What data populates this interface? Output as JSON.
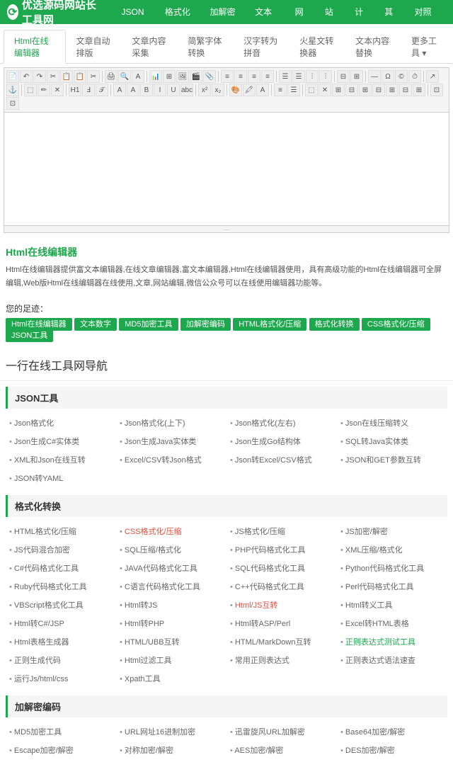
{
  "site_name": "优选源码网站长工具网",
  "topnav": [
    "JSON工具",
    "格式化转换",
    "加解密编码",
    "文本数字",
    "网络",
    "站长",
    "计算",
    "其他",
    "对照列表"
  ],
  "tabs": [
    "Html在线编辑器",
    "文章自动排版",
    "文章内容采集",
    "简繁字体转换",
    "汉字转为拼音",
    "火星文转换器",
    "文本内容替换",
    "更多工具"
  ],
  "section_title": "Html在线编辑器",
  "description": "Html在线编辑器提供富文本编辑器,在线文章编辑器,富文本编辑器,Html在线编辑器使用，具有高级功能的Html在线编辑器可全屏编辑,Web版Html在线编辑器在线使用,文章,网站编辑,微信公众号可以在线使用编辑器功能等。",
  "footer_label": "您的足迹：",
  "footer_tags": [
    "Html在线编辑器",
    "文本数字",
    "MD5加密工具",
    "加解密编码",
    "HTML格式化/压缩",
    "格式化转换",
    "CSS格式化/压缩",
    "JSON工具"
  ],
  "nav_title": "一行在线工具网导航",
  "categories": [
    {
      "name": "JSON工具",
      "items": [
        {
          "t": "Json格式化"
        },
        {
          "t": "Json格式化(上下)"
        },
        {
          "t": "Json格式化(左右)"
        },
        {
          "t": "Json在线压缩转义"
        },
        {
          "t": "Json生成C#实体类"
        },
        {
          "t": "Json生成Java实体类"
        },
        {
          "t": "Json生成Go结构体"
        },
        {
          "t": "SQL转Java实体类"
        },
        {
          "t": "XML和Json在线互转"
        },
        {
          "t": "Excel/CSV转Json格式"
        },
        {
          "t": "Json转Excel/CSV格式"
        },
        {
          "t": "JSON和GET参数互转"
        },
        {
          "t": "JSON转YAML"
        }
      ]
    },
    {
      "name": "格式化转换",
      "items": [
        {
          "t": "HTML格式化/压缩"
        },
        {
          "t": "CSS格式化/压缩",
          "hl": 1
        },
        {
          "t": "JS格式化/压缩"
        },
        {
          "t": "JS加密/解密"
        },
        {
          "t": "JS代码混合加密"
        },
        {
          "t": "SQL压缩/格式化"
        },
        {
          "t": "PHP代码格式化工具"
        },
        {
          "t": "XML压缩/格式化"
        },
        {
          "t": "C#代码格式化工具"
        },
        {
          "t": "JAVA代码格式化工具"
        },
        {
          "t": "SQL代码格式化工具"
        },
        {
          "t": "Python代码格式化工具"
        },
        {
          "t": "Ruby代码格式化工具"
        },
        {
          "t": "C语言代码格式化工具"
        },
        {
          "t": "C++代码格式化工具"
        },
        {
          "t": "Perl代码格式化工具"
        },
        {
          "t": "VBScript格式化工具"
        },
        {
          "t": "Html转JS"
        },
        {
          "t": "Html/JS互转",
          "hl": 1
        },
        {
          "t": "Html转义工具"
        },
        {
          "t": "Html转C#/JSP"
        },
        {
          "t": "Html转PHP"
        },
        {
          "t": "Html转ASP/Perl"
        },
        {
          "t": "Excel转HTML表格"
        },
        {
          "t": "Html表格生成器"
        },
        {
          "t": "HTML/UBB互转"
        },
        {
          "t": "HTML/MarkDown互转"
        },
        {
          "t": "正则表达式测试工具",
          "hl": 2
        },
        {
          "t": "正则生成代码"
        },
        {
          "t": "Html过滤工具"
        },
        {
          "t": "常用正则表达式"
        },
        {
          "t": "正则表达式语法速查"
        },
        {
          "t": "运行Js/html/css"
        },
        {
          "t": "Xpath工具"
        }
      ]
    },
    {
      "name": "加解密编码",
      "items": [
        {
          "t": "MD5加密工具"
        },
        {
          "t": "URL网址16进制加密"
        },
        {
          "t": "迅雷旋风URL加解密"
        },
        {
          "t": "Base64加密/解密"
        },
        {
          "t": "Escape加密/解密"
        },
        {
          "t": "对称加密/解密"
        },
        {
          "t": "AES加密/解密"
        },
        {
          "t": "DES加密/解密"
        }
      ]
    }
  ]
}
